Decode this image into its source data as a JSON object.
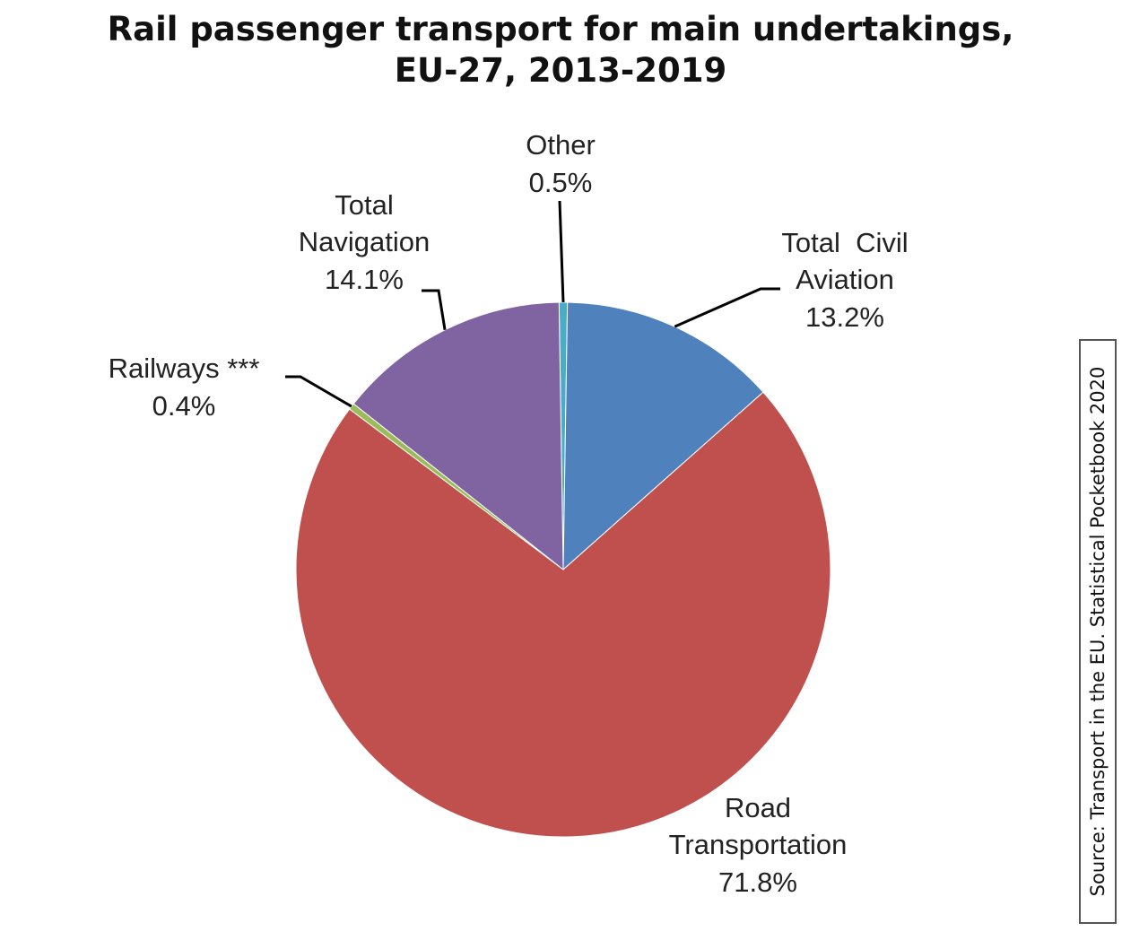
{
  "chart_data": {
    "type": "pie",
    "title_lines": [
      "Rail passenger transport for main undertakings,",
      "EU-27, 2013-2019"
    ],
    "slices": [
      {
        "label_lines": [
          "Other"
        ],
        "pct_label": "0.5%",
        "value": 0.5,
        "color": "#4bacc6"
      },
      {
        "label_lines": [
          "Total  Civil",
          "Aviation"
        ],
        "pct_label": "13.2%",
        "value": 13.2,
        "color": "#4f81bd"
      },
      {
        "label_lines": [
          "Road",
          "Transportation"
        ],
        "pct_label": "71.8%",
        "value": 71.8,
        "color": "#c0504d"
      },
      {
        "label_lines": [
          "Railways ***"
        ],
        "pct_label": "0.4%",
        "value": 0.4,
        "color": "#9bbb59"
      },
      {
        "label_lines": [
          "Total",
          "Navigation"
        ],
        "pct_label": "14.1%",
        "value": 14.1,
        "color": "#8064a2"
      }
    ],
    "source": "Source: Transport in the EU. Statistical Pocketbook 2020"
  }
}
